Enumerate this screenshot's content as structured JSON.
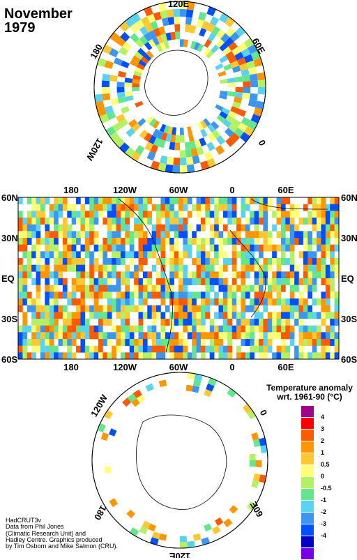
{
  "title": {
    "month": "November",
    "year": "1979"
  },
  "maps": {
    "north_polar": {
      "longitude_labels": [
        "120E",
        "60E",
        "0",
        "120W",
        "180"
      ]
    },
    "equirectangular": {
      "top_lon_labels": [
        "180",
        "120W",
        "60W",
        "0",
        "60E"
      ],
      "bottom_lon_labels": [
        "180",
        "120W",
        "60W",
        "0",
        "60E"
      ],
      "lat_labels_left": [
        "60N",
        "30N",
        "EQ",
        "30S",
        "60S"
      ],
      "lat_labels_right": [
        "60N",
        "30N",
        "EQ",
        "30S",
        "60S"
      ]
    },
    "south_polar": {
      "longitude_labels": [
        "120W",
        "0",
        "60E",
        "120E",
        "180"
      ]
    }
  },
  "legend": {
    "title_line1": "Temperature anomaly",
    "title_line2": "wrt. 1961-90  (°C)",
    "levels": [
      {
        "label": "4",
        "color": "#a0008c"
      },
      {
        "label": "3",
        "color": "#ff0000"
      },
      {
        "label": "2",
        "color": "#ff5a00"
      },
      {
        "label": "1",
        "color": "#ff9600"
      },
      {
        "label": "0.5",
        "color": "#ffc832"
      },
      {
        "label": "0",
        "color": "#ffff78"
      },
      {
        "label": "-0.5",
        "color": "#b4f064"
      },
      {
        "label": "-1",
        "color": "#64e68c"
      },
      {
        "label": "-2",
        "color": "#5ad2f0"
      },
      {
        "label": "-3",
        "color": "#3c96f0"
      },
      {
        "label": "-4",
        "color": "#0050ff"
      },
      {
        "label": "",
        "color": "#0000c8"
      },
      {
        "label": "",
        "color": "#7800e6"
      }
    ]
  },
  "credit": {
    "line1": "HadCRUT3v",
    "line2": "Data from Phil Jones",
    "line3": "(Climatic Research Unit) and",
    "line4": "Hadley Centre.  Graphics produced",
    "line5": "by Tim Osborn and Mike Salmon (CRU)."
  }
}
